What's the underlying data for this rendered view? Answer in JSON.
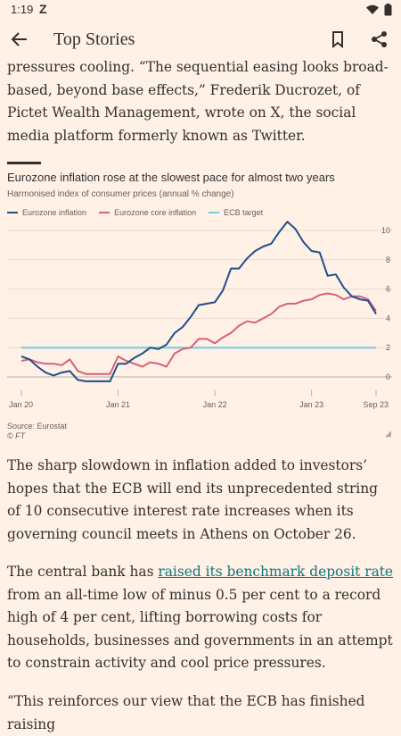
{
  "status_bar": {
    "time": "1:19",
    "app_glyph": "Z"
  },
  "app_bar": {
    "title": "Top Stories"
  },
  "paragraphs": {
    "p1": "pressures cooling. “The sequential easing looks broad-based, beyond base effects,” Frederik Ducrozet, of Pictet Wealth Management, wrote on X, the social media platform formerly known as Twitter.",
    "p2": "The sharp slowdown in inflation added to investors’ hopes that the ECB will end its unprecedented string of 10 consecutive interest rate increases when its governing council meets in Athens on October 26.",
    "p3_before": "The central bank has ",
    "p3_link": "raised its benchmark deposit rate",
    "p3_after": " from an all-time low of minus 0.5 per cent to a record high of 4 per cent, lifting borrowing costs for households, businesses and governments in an attempt to constrain activity and cool price pressures.",
    "p4": "“This reinforces our view that the ECB has finished raising"
  },
  "chart_title": "Eurozone inflation rose at the slowest pace for almost two years",
  "chart_subtitle": "Harmonised index of consumer prices (annual % change)",
  "chart_source": "Source: Eurostat",
  "chart_credit": "© FT",
  "colors": {
    "headline": "#1f4e8c",
    "core": "#d6617a",
    "target": "#6fcde0",
    "grid": "#e5d9ce",
    "background": "#fff1e5"
  },
  "chart_data": {
    "type": "line",
    "title": "Eurozone inflation rose at the slowest pace for almost two years",
    "subtitle": "Harmonised index of consumer prices (annual % change)",
    "x_ticks": [
      "Jan 20",
      "Jan 21",
      "Jan 22",
      "Jan 23",
      "Sep 23"
    ],
    "y_ticks": [
      0,
      2,
      4,
      6,
      8,
      10
    ],
    "ylim": [
      -2,
      11
    ],
    "legend_position": "top",
    "grid": true,
    "x": [
      "2020-01",
      "2020-02",
      "2020-03",
      "2020-04",
      "2020-05",
      "2020-06",
      "2020-07",
      "2020-08",
      "2020-09",
      "2020-10",
      "2020-11",
      "2020-12",
      "2021-01",
      "2021-02",
      "2021-03",
      "2021-04",
      "2021-05",
      "2021-06",
      "2021-07",
      "2021-08",
      "2021-09",
      "2021-10",
      "2021-11",
      "2021-12",
      "2022-01",
      "2022-02",
      "2022-03",
      "2022-04",
      "2022-05",
      "2022-06",
      "2022-07",
      "2022-08",
      "2022-09",
      "2022-10",
      "2022-11",
      "2022-12",
      "2023-01",
      "2023-02",
      "2023-03",
      "2023-04",
      "2023-05",
      "2023-06",
      "2023-07",
      "2023-08",
      "2023-09"
    ],
    "series": [
      {
        "name": "Eurozone inflation",
        "color": "#1f4e8c",
        "values": [
          1.4,
          1.2,
          0.7,
          0.3,
          0.1,
          0.3,
          0.4,
          -0.2,
          -0.3,
          -0.3,
          -0.3,
          -0.3,
          0.9,
          0.9,
          1.3,
          1.6,
          2.0,
          1.9,
          2.2,
          3.0,
          3.4,
          4.1,
          4.9,
          5.0,
          5.1,
          5.9,
          7.4,
          7.4,
          8.1,
          8.6,
          8.9,
          9.1,
          9.9,
          10.6,
          10.1,
          9.2,
          8.6,
          8.5,
          6.9,
          7.0,
          6.1,
          5.5,
          5.3,
          5.2,
          4.3
        ]
      },
      {
        "name": "Eurozone core inflation",
        "color": "#d6617a",
        "values": [
          1.1,
          1.2,
          1.0,
          0.9,
          0.9,
          0.8,
          1.2,
          0.4,
          0.2,
          0.2,
          0.2,
          0.2,
          1.4,
          1.1,
          0.9,
          0.7,
          1.0,
          0.9,
          0.7,
          1.6,
          1.9,
          2.0,
          2.6,
          2.6,
          2.3,
          2.7,
          3.0,
          3.5,
          3.8,
          3.7,
          4.0,
          4.3,
          4.8,
          5.0,
          5.0,
          5.2,
          5.3,
          5.6,
          5.7,
          5.6,
          5.3,
          5.5,
          5.5,
          5.3,
          4.5
        ]
      },
      {
        "name": "ECB target",
        "color": "#6fcde0",
        "values": [
          2,
          2,
          2,
          2,
          2,
          2,
          2,
          2,
          2,
          2,
          2,
          2,
          2,
          2,
          2,
          2,
          2,
          2,
          2,
          2,
          2,
          2,
          2,
          2,
          2,
          2,
          2,
          2,
          2,
          2,
          2,
          2,
          2,
          2,
          2,
          2,
          2,
          2,
          2,
          2,
          2,
          2,
          2,
          2,
          2
        ]
      }
    ]
  }
}
